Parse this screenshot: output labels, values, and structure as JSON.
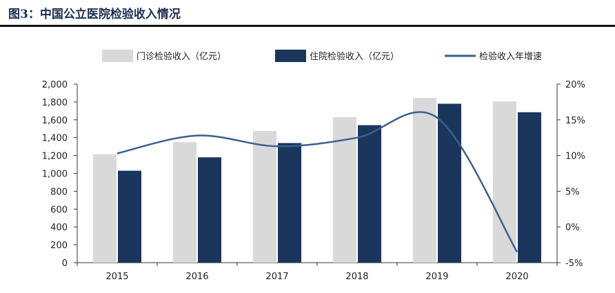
{
  "figure_title": "图3：中国公立医院检验收入情况",
  "chart_data": {
    "type": "bar",
    "categories": [
      "2015",
      "2016",
      "2017",
      "2018",
      "2019",
      "2020"
    ],
    "series": [
      {
        "name": "门诊检验收入（亿元）",
        "kind": "bar",
        "axis": "left",
        "color": "#d9d9d9",
        "values": [
          1215,
          1350,
          1475,
          1630,
          1845,
          1805
        ]
      },
      {
        "name": "住院检验收入（亿元）",
        "kind": "bar",
        "axis": "left",
        "color": "#1a365d",
        "values": [
          1030,
          1180,
          1340,
          1540,
          1780,
          1685
        ]
      },
      {
        "name": "检验收入年增速",
        "kind": "line",
        "axis": "right",
        "color": "#3a5f8f",
        "values": [
          10.3,
          12.8,
          11.3,
          12.5,
          15.3,
          -3.5
        ]
      }
    ],
    "y_left": {
      "min": 0,
      "max": 2000,
      "ticks": [
        0,
        200,
        400,
        600,
        800,
        1000,
        1200,
        1400,
        1600,
        1800,
        2000
      ],
      "tick_labels": [
        "0",
        "200",
        "400",
        "600",
        "800",
        "1,000",
        "1,200",
        "1,400",
        "1,600",
        "1,800",
        "2,000"
      ]
    },
    "y_right": {
      "min": -5,
      "max": 20,
      "ticks": [
        -5,
        0,
        5,
        10,
        15,
        20
      ],
      "tick_labels": [
        "-5%",
        "0%",
        "5%",
        "10%",
        "15%",
        "20%"
      ]
    },
    "legend_position": "top",
    "grid": false
  }
}
